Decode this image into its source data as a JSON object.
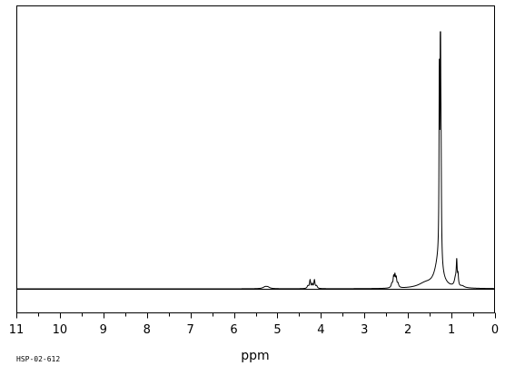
{
  "chart_data": {
    "type": "line",
    "xlabel": "ppm",
    "ylabel": "",
    "x_reversed": true,
    "xlim": [
      11,
      0
    ],
    "ylim": [
      0,
      100
    ],
    "grid": false,
    "legend": "none",
    "x_ticks": [
      11,
      10,
      9,
      8,
      7,
      6,
      5,
      4,
      3,
      2,
      1,
      0
    ],
    "x_tick_labels": [
      "11",
      "10",
      "9",
      "8",
      "7",
      "6",
      "5",
      "4",
      "3",
      "2",
      "1",
      "0"
    ],
    "baseline": 0,
    "peaks": [
      {
        "ppm": 5.28,
        "height": 0.7,
        "width": 0.06
      },
      {
        "ppm": 5.22,
        "height": 0.5,
        "width": 0.05
      },
      {
        "ppm": 4.3,
        "height": 1.0,
        "width": 0.02
      },
      {
        "ppm": 4.25,
        "height": 3.2,
        "width": 0.015
      },
      {
        "ppm": 4.2,
        "height": 1.6,
        "width": 0.015
      },
      {
        "ppm": 4.15,
        "height": 3.2,
        "width": 0.015
      },
      {
        "ppm": 4.1,
        "height": 1.0,
        "width": 0.02
      },
      {
        "ppm": 2.37,
        "height": 1.5,
        "width": 0.02
      },
      {
        "ppm": 2.33,
        "height": 3.8,
        "width": 0.015
      },
      {
        "ppm": 2.3,
        "height": 4.2,
        "width": 0.015
      },
      {
        "ppm": 2.27,
        "height": 3.3,
        "width": 0.015
      },
      {
        "ppm": 2.23,
        "height": 1.5,
        "width": 0.02
      },
      {
        "ppm": 1.6,
        "height": 1.8,
        "width": 0.2
      },
      {
        "ppm": 1.3,
        "height": 10.0,
        "width": 0.1
      },
      {
        "ppm": 1.28,
        "height": 68.0,
        "width": 0.008
      },
      {
        "ppm": 1.255,
        "height": 100.0,
        "width": 0.008
      },
      {
        "ppm": 1.24,
        "height": 35.0,
        "width": 0.01
      },
      {
        "ppm": 0.91,
        "height": 3.0,
        "width": 0.03
      },
      {
        "ppm": 0.88,
        "height": 9.0,
        "width": 0.012
      },
      {
        "ppm": 0.85,
        "height": 4.0,
        "width": 0.012
      },
      {
        "ppm": 0.75,
        "height": 0.6,
        "width": 0.05
      }
    ]
  },
  "labels": {
    "xlabel": "ppm",
    "code": "HSP-02-612"
  },
  "colors": {
    "line": "#000000",
    "frame": "#000000",
    "background": "#ffffff"
  }
}
